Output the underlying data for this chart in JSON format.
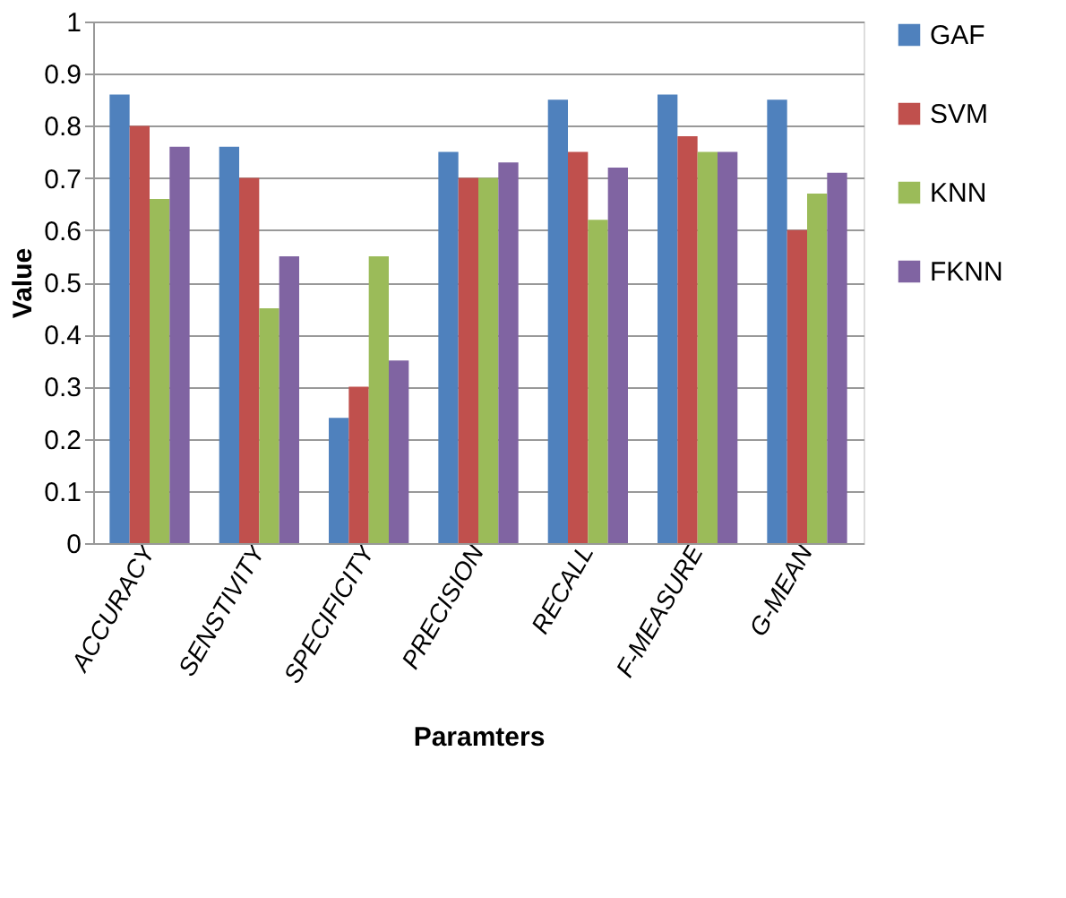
{
  "chart_data": {
    "type": "bar",
    "xlabel": "Paramters",
    "ylabel": "Value",
    "categories": [
      "ACCURACY",
      "SENSTIVITY",
      "SPECIFICITY",
      "PRECISION",
      "RECALL",
      "F-MEASURE",
      "G-MEAN"
    ],
    "series": [
      {
        "name": "GAF",
        "color": "#4f81bd",
        "values": [
          0.86,
          0.76,
          0.24,
          0.75,
          0.85,
          0.86,
          0.85
        ]
      },
      {
        "name": "SVM",
        "color": "#c0504d",
        "values": [
          0.8,
          0.7,
          0.3,
          0.7,
          0.75,
          0.78,
          0.6
        ]
      },
      {
        "name": "KNN",
        "color": "#9bbb59",
        "values": [
          0.66,
          0.45,
          0.55,
          0.7,
          0.62,
          0.75,
          0.67
        ]
      },
      {
        "name": "FKNN",
        "color": "#8064a2",
        "values": [
          0.76,
          0.55,
          0.35,
          0.73,
          0.72,
          0.75,
          0.71
        ]
      }
    ],
    "ylim": [
      0,
      1
    ],
    "yticks": [
      0,
      0.1,
      0.2,
      0.3,
      0.4,
      0.5,
      0.6,
      0.7,
      0.8,
      0.9,
      1
    ],
    "grid": "y",
    "legend": "right"
  }
}
